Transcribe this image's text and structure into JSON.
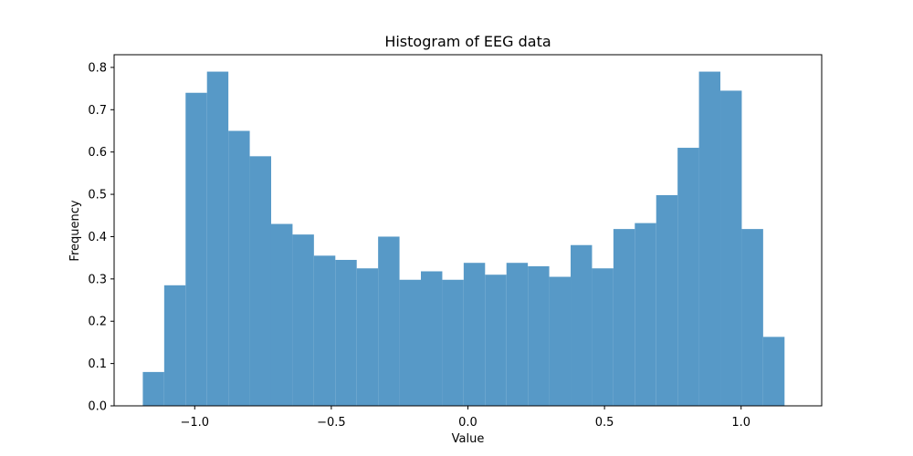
{
  "chart_data": {
    "type": "bar",
    "title": "Histogram of EEG data",
    "xlabel": "Value",
    "ylabel": "Frequency",
    "xlim": [
      -1.295,
      1.295
    ],
    "ylim": [
      0.0,
      0.83
    ],
    "grid": false,
    "bar_color": "#5799c7",
    "bin_edges": [
      -1.19,
      -1.1117,
      -1.0334,
      -0.9551,
      -0.8768,
      -0.7985,
      -0.7202,
      -0.6419,
      -0.5636,
      -0.4853,
      -0.407,
      -0.3287,
      -0.2504,
      -0.1721,
      -0.0938,
      -0.0155,
      0.0628,
      0.1411,
      0.2194,
      0.2977,
      0.376,
      0.4543,
      0.5326,
      0.6109,
      0.6892,
      0.7675,
      0.8458,
      0.9241,
      1.0024,
      1.0807,
      1.159
    ],
    "values": [
      0.08,
      0.285,
      0.74,
      0.79,
      0.65,
      0.59,
      0.43,
      0.405,
      0.355,
      0.345,
      0.325,
      0.4,
      0.298,
      0.318,
      0.298,
      0.338,
      0.31,
      0.338,
      0.33,
      0.305,
      0.38,
      0.325,
      0.418,
      0.432,
      0.498,
      0.61,
      0.79,
      0.745,
      0.418,
      0.163
    ],
    "xticks": [
      {
        "value": -1.0,
        "label": "−1.0"
      },
      {
        "value": -0.5,
        "label": "−0.5"
      },
      {
        "value": 0.0,
        "label": "0.0"
      },
      {
        "value": 0.5,
        "label": "0.5"
      },
      {
        "value": 1.0,
        "label": "1.0"
      }
    ],
    "yticks": [
      {
        "value": 0.0,
        "label": "0.0"
      },
      {
        "value": 0.1,
        "label": "0.1"
      },
      {
        "value": 0.2,
        "label": "0.2"
      },
      {
        "value": 0.3,
        "label": "0.3"
      },
      {
        "value": 0.4,
        "label": "0.4"
      },
      {
        "value": 0.5,
        "label": "0.5"
      },
      {
        "value": 0.6,
        "label": "0.6"
      },
      {
        "value": 0.7,
        "label": "0.7"
      },
      {
        "value": 0.8,
        "label": "0.8"
      }
    ]
  }
}
